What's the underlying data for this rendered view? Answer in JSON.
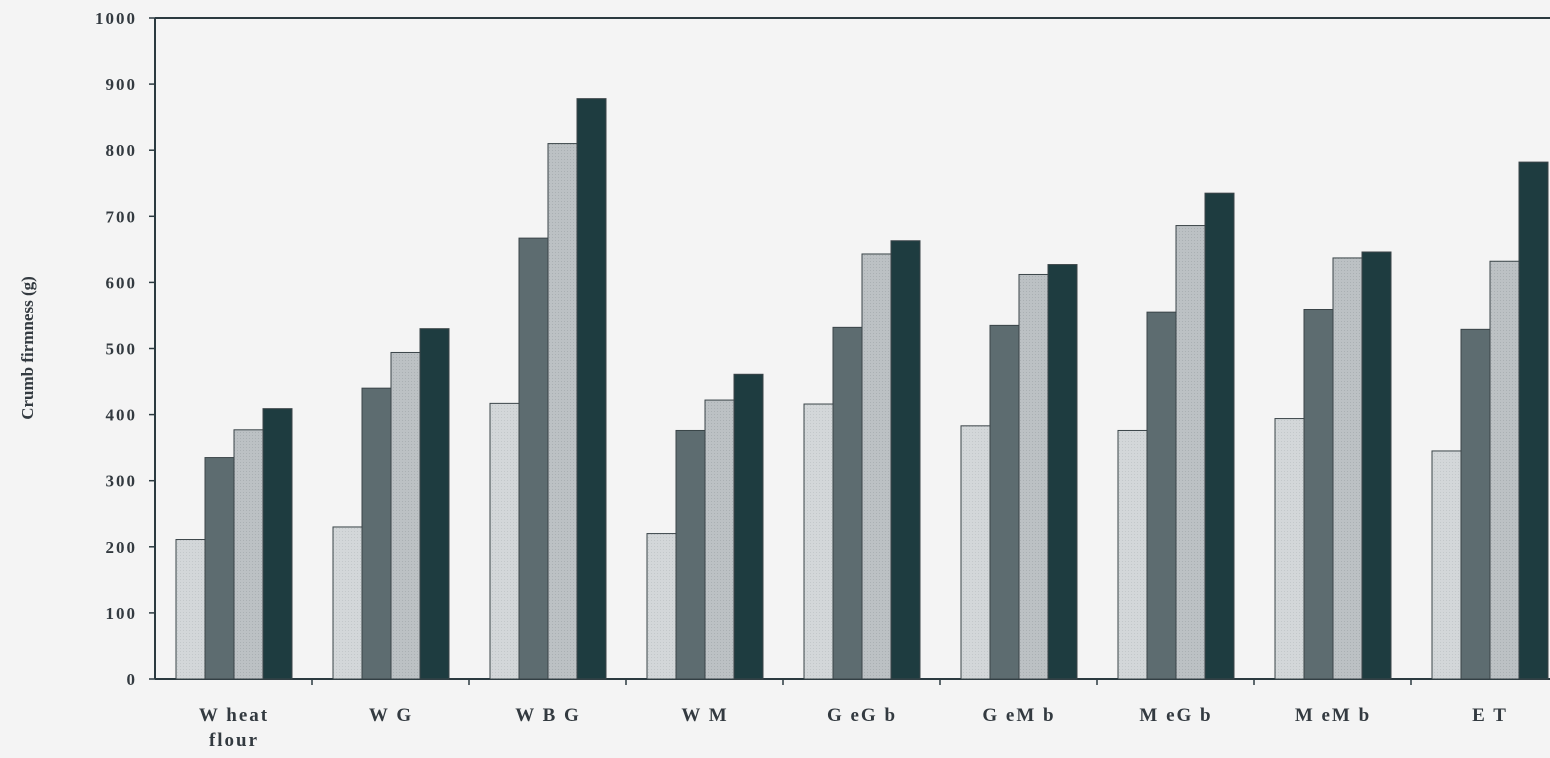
{
  "chart_data": {
    "type": "bar",
    "title": "",
    "xlabel": "",
    "ylabel": "Crumb firmness (g)",
    "ylim": [
      0,
      1000
    ],
    "yticks": [
      "0",
      "100",
      "200",
      "300",
      "400",
      "500",
      "600",
      "700",
      "800",
      "900",
      "1000"
    ],
    "grid": false,
    "legend": "none",
    "categories": [
      [
        "W heat",
        "flour"
      ],
      [
        "W G"
      ],
      [
        "W B G"
      ],
      [
        "W M"
      ],
      [
        "G eG b"
      ],
      [
        "G eM b"
      ],
      [
        "M eG b"
      ],
      [
        "M eM b"
      ],
      [
        "E T"
      ]
    ],
    "series": [
      {
        "color": "#cdd1d3",
        "values": [
          211,
          230,
          417,
          220,
          416,
          383,
          376,
          394,
          345
        ]
      },
      {
        "color": "#5d6c70",
        "values": [
          335,
          440,
          667,
          376,
          532,
          535,
          555,
          559,
          529
        ]
      },
      {
        "color": "#b9bec1",
        "values": [
          377,
          494,
          810,
          422,
          643,
          612,
          686,
          637,
          632
        ]
      },
      {
        "color": "#1e3c40",
        "values": [
          409,
          530,
          878,
          461,
          663,
          627,
          735,
          646,
          782
        ]
      }
    ],
    "ylabel_color": "#2e5a62"
  }
}
